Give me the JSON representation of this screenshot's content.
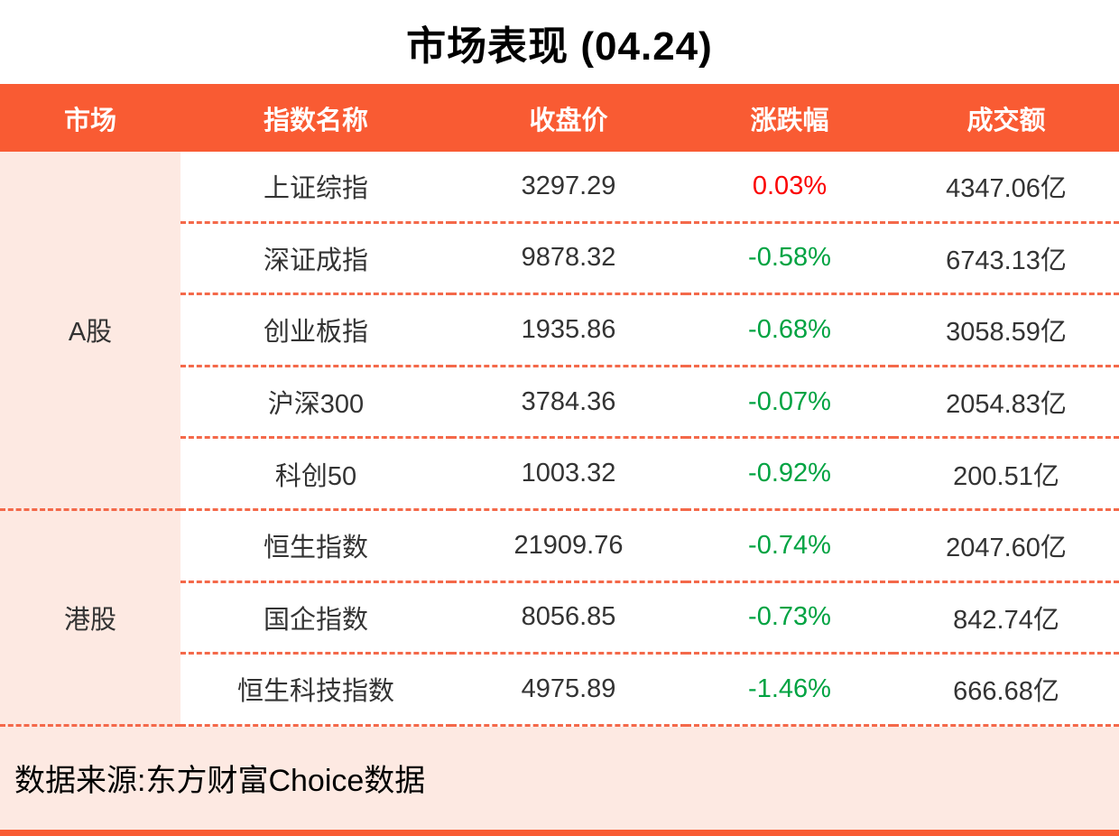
{
  "colors": {
    "accent": "#F95B33",
    "pink": "#FDE9E2",
    "divider": "#F4694A",
    "up": "#FB0000",
    "down": "#00A342"
  },
  "chart_data": {
    "type": "table",
    "title": "市场表现 (04.24)",
    "columns": [
      "市场",
      "指数名称",
      "收盘价",
      "涨跌幅",
      "成交额"
    ],
    "groups": [
      {
        "market": "A股",
        "rows": [
          {
            "name": "上证综指",
            "close": "3297.29",
            "change": "0.03%",
            "direction": "up",
            "turnover": "4347.06亿"
          },
          {
            "name": "深证成指",
            "close": "9878.32",
            "change": "-0.58%",
            "direction": "down",
            "turnover": "6743.13亿"
          },
          {
            "name": "创业板指",
            "close": "1935.86",
            "change": "-0.68%",
            "direction": "down",
            "turnover": "3058.59亿"
          },
          {
            "name": "沪深300",
            "close": "3784.36",
            "change": "-0.07%",
            "direction": "down",
            "turnover": "2054.83亿"
          },
          {
            "name": "科创50",
            "close": "1003.32",
            "change": "-0.92%",
            "direction": "down",
            "turnover": "200.51亿"
          }
        ]
      },
      {
        "market": "港股",
        "rows": [
          {
            "name": "恒生指数",
            "close": "21909.76",
            "change": "-0.74%",
            "direction": "down",
            "turnover": "2047.60亿"
          },
          {
            "name": "国企指数",
            "close": "8056.85",
            "change": "-0.73%",
            "direction": "down",
            "turnover": "842.74亿"
          },
          {
            "name": "恒生科技指数",
            "close": "4975.89",
            "change": "-1.46%",
            "direction": "down",
            "turnover": "666.68亿"
          }
        ]
      }
    ],
    "source_note": "数据来源:东方财富Choice数据"
  }
}
